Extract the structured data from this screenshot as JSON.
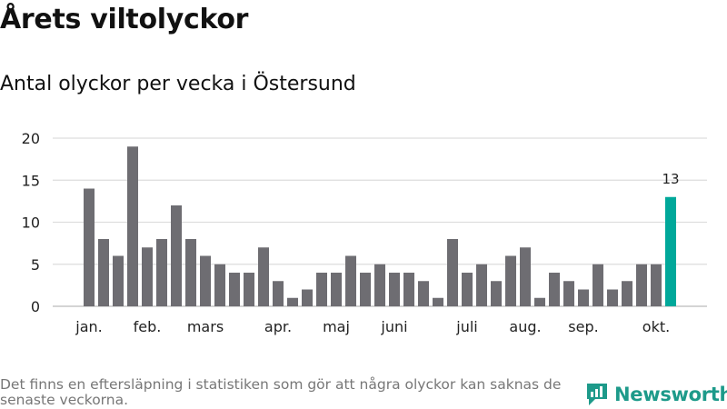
{
  "header": {
    "title": "Årets viltolyckor",
    "subtitle": "Antal olyckor per vecka i Östersund"
  },
  "footer": {
    "note": "Det finns en eftersläpning i statistiken som gör att några olyckor kan saknas de senaste veckorna.",
    "brand": "Newsworthy"
  },
  "colors": {
    "bar": "#6e6d72",
    "highlight": "#00a89a",
    "grid": "#dddddd",
    "brand": "#1d9a8a"
  },
  "chart_data": {
    "type": "bar",
    "title": "Antal olyckor per vecka i Östersund",
    "xlabel": "",
    "ylabel": "",
    "ylim": [
      0,
      20
    ],
    "yticks": [
      0,
      5,
      10,
      15,
      20
    ],
    "grid": true,
    "weeks": [
      1,
      2,
      3,
      4,
      5,
      6,
      7,
      8,
      9,
      10,
      11,
      12,
      13,
      14,
      15,
      16,
      17,
      18,
      19,
      20,
      21,
      22,
      23,
      24,
      25,
      26,
      27,
      28,
      29,
      30,
      31,
      32,
      33,
      34,
      35,
      36,
      37,
      38,
      39,
      40,
      41
    ],
    "values": [
      14,
      8,
      6,
      19,
      7,
      8,
      12,
      8,
      6,
      5,
      4,
      4,
      7,
      3,
      1,
      2,
      4,
      4,
      6,
      4,
      5,
      4,
      4,
      3,
      1,
      8,
      4,
      5,
      3,
      6,
      7,
      1,
      4,
      3,
      2,
      5,
      2,
      3,
      5,
      5,
      13
    ],
    "highlight_index": 40,
    "highlight_label": "13",
    "month_labels": [
      {
        "label": "jan.",
        "week": 1
      },
      {
        "label": "feb.",
        "week": 5
      },
      {
        "label": "mars",
        "week": 9
      },
      {
        "label": "apr.",
        "week": 14
      },
      {
        "label": "maj",
        "week": 18
      },
      {
        "label": "juni",
        "week": 22
      },
      {
        "label": "juli",
        "week": 27
      },
      {
        "label": "aug.",
        "week": 31
      },
      {
        "label": "sep.",
        "week": 35
      },
      {
        "label": "okt.",
        "week": 40
      }
    ]
  }
}
